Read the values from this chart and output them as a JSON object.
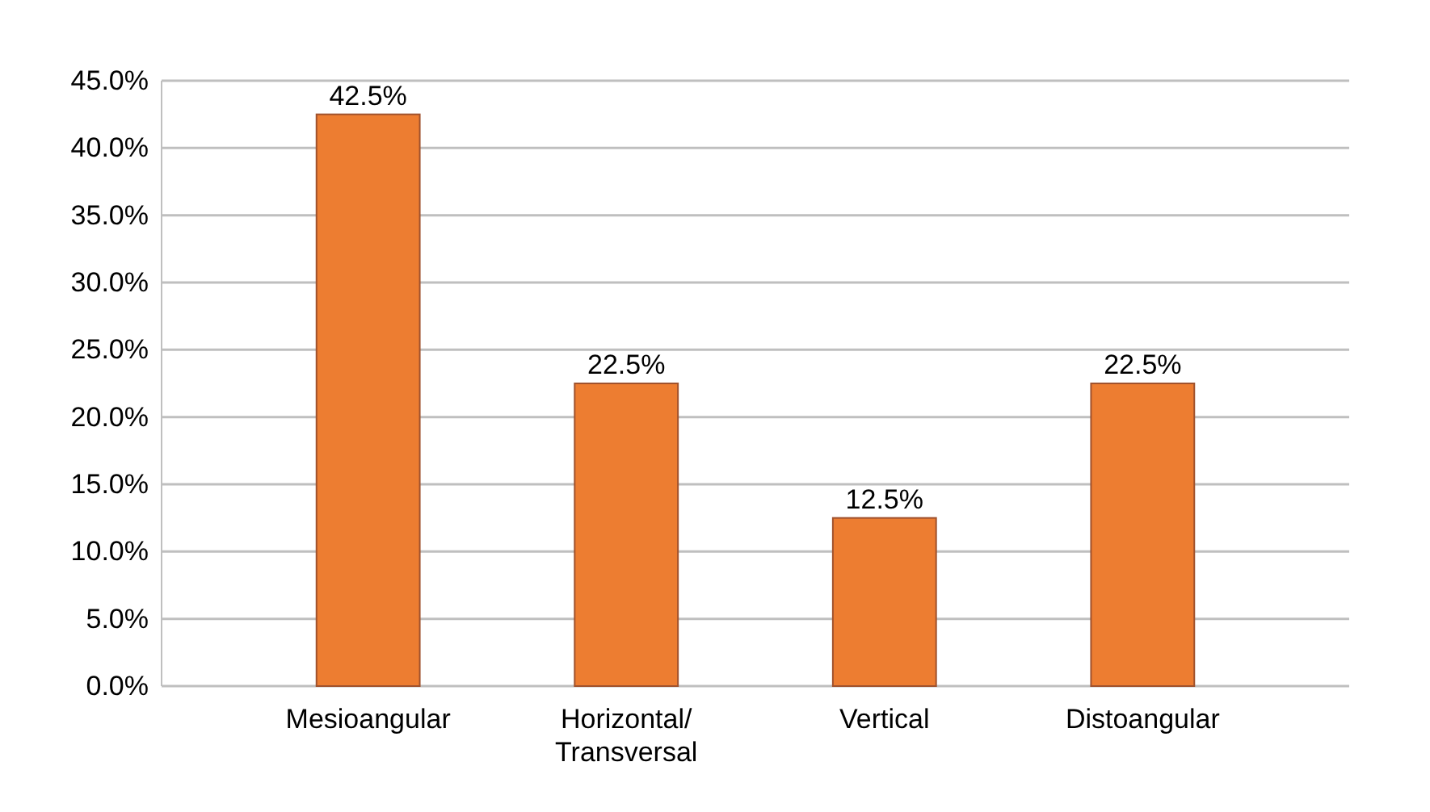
{
  "chart_data": {
    "type": "bar",
    "categories": [
      "Mesioangular",
      "Horizontal/ Transversal",
      "Vertical",
      "Distoangular"
    ],
    "values": [
      42.5,
      22.5,
      12.5,
      22.5
    ],
    "color": "#ed7d31",
    "value_labels": [
      "42.5%",
      "22.5%",
      "12.5%",
      "22.5%"
    ],
    "ylim": [
      0,
      45
    ],
    "yticks": [
      {
        "value": 0,
        "label": "0.0%"
      },
      {
        "value": 5,
        "label": "5.0%"
      },
      {
        "value": 10,
        "label": "10.0%"
      },
      {
        "value": 15,
        "label": "15.0%"
      },
      {
        "value": 20,
        "label": "20.0%"
      },
      {
        "value": 25,
        "label": "25.0%"
      },
      {
        "value": 30,
        "label": "30.0%"
      },
      {
        "value": 35,
        "label": "35.0%"
      },
      {
        "value": 40,
        "label": "40.0%"
      },
      {
        "value": 45,
        "label": "45.0%"
      }
    ],
    "grid": true
  }
}
